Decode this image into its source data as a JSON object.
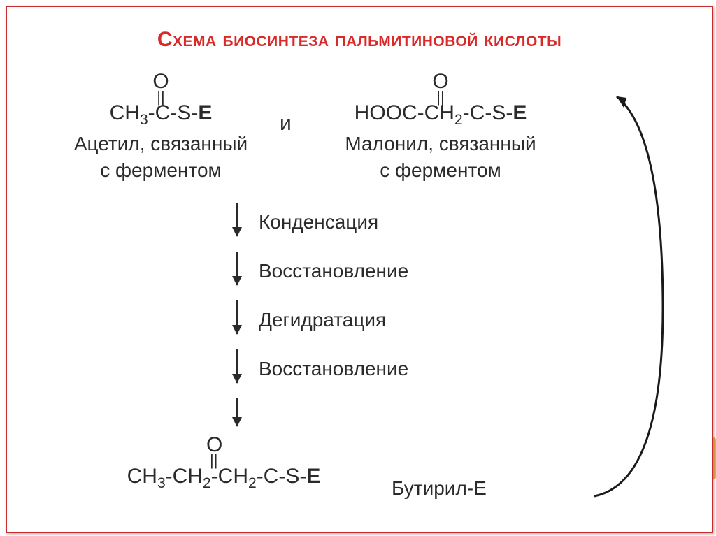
{
  "slide": {
    "title": "Схема биосинтеза пальмитиновой кислоты",
    "title_color": "#d92a2a",
    "title_fontsize": 30,
    "border_color": "#c72c2c",
    "background": "#ffffff",
    "accent_color": "#efb24a"
  },
  "diagram": {
    "type": "flowchart",
    "text_color": "#2a2a2a",
    "connector_word": "и",
    "molecules": {
      "left": {
        "oxygen": "O",
        "double_bond": "||",
        "formula_html": "CH<sub>3</sub>-C-S-<span class='b'>E</span>",
        "label_line1": "Ацетил, связанный",
        "label_line2": "с ферментом"
      },
      "right": {
        "oxygen": "O",
        "double_bond": "||",
        "formula_html": "HOOC-CH<sub>2</sub>-C-S-<span class='b'>E</span>",
        "label_line1": "Малонил, связанный",
        "label_line2": "с ферментом"
      }
    },
    "steps": [
      "Конденсация",
      "Восстановление",
      "Дегидратация",
      "Восстановление"
    ],
    "product": {
      "oxygen": "O",
      "double_bond": "||",
      "formula_html": "CH<sub>3</sub>-CH<sub>2</sub>-CH<sub>2</sub>-C-S-<span class='b'>E</span>",
      "label": "Бутирил-Е"
    },
    "arrow_color": "#2a2a2a",
    "return_arrow": {
      "stroke": "#1a1a1a",
      "stroke_width": 3
    }
  }
}
